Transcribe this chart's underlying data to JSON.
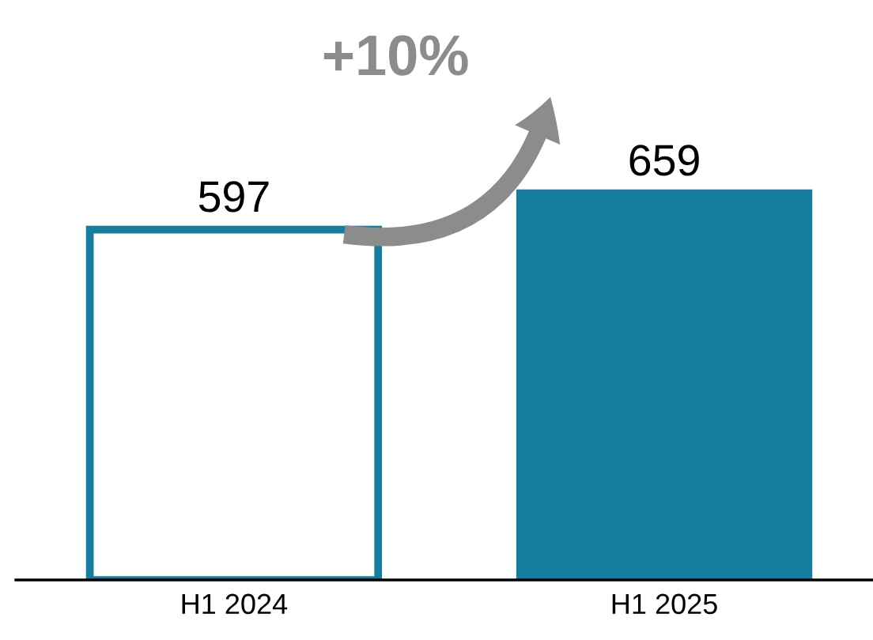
{
  "chart_data": {
    "type": "bar",
    "categories": [
      "H1 2024",
      "H1 2025"
    ],
    "values": [
      597,
      659
    ],
    "colors": [
      "#ffffff",
      "#157ea0"
    ],
    "data_labels": true,
    "grid": false,
    "annotations": [
      "+10%"
    ]
  }
}
